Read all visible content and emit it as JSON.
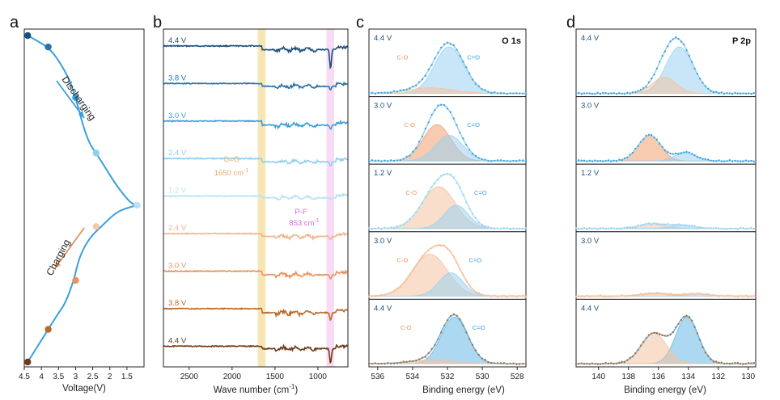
{
  "colors": {
    "blue_dark": "#1d4f7a",
    "blue_mid": "#2a73a8",
    "blue": "#3aa0dc",
    "blue_light": "#8fcff2",
    "orange_light": "#f2b48e",
    "orange": "#e8915a",
    "brown": "#b86a2c",
    "brown_dark": "#6e3a18",
    "band_co": "#f6e2a8",
    "band_pf": "#f7d6f2",
    "co_text": "#e0b070",
    "pf_text": "#d06ad0",
    "fit_blue": "#9ad2f1",
    "fit_orange": "#f4c2a0"
  },
  "chart_data": [
    {
      "id": "a",
      "type": "line",
      "panel_label": "a",
      "xlabel": "Voltage(V)",
      "x_reversed": true,
      "xlim": [
        4.5,
        1.0
      ],
      "x_ticks": [
        "4.5",
        "4",
        "3.5",
        "3",
        "2.5",
        "2",
        "1.5"
      ],
      "x_tick_values": [
        4.5,
        4.0,
        3.5,
        3.0,
        2.5,
        2.0,
        1.5
      ],
      "discharge_curve": [
        [
          4.4,
          0.0
        ],
        [
          3.8,
          0.035
        ],
        [
          3.5,
          0.075
        ],
        [
          3.2,
          0.13
        ],
        [
          3.0,
          0.19
        ],
        [
          2.8,
          0.27
        ],
        [
          2.6,
          0.33
        ],
        [
          2.4,
          0.36
        ],
        [
          2.1,
          0.41
        ],
        [
          1.8,
          0.46
        ],
        [
          1.5,
          0.5
        ],
        [
          1.35,
          0.515
        ],
        [
          1.2,
          0.52
        ]
      ],
      "charge_curve": [
        [
          1.2,
          0.52
        ],
        [
          1.4,
          0.525
        ],
        [
          1.8,
          0.54
        ],
        [
          2.2,
          0.58
        ],
        [
          2.6,
          0.62
        ],
        [
          2.9,
          0.68
        ],
        [
          3.05,
          0.75
        ],
        [
          3.3,
          0.82
        ],
        [
          3.5,
          0.85
        ],
        [
          3.8,
          0.9
        ],
        [
          4.1,
          0.95
        ],
        [
          4.4,
          1.0
        ]
      ],
      "points": [
        {
          "v": 4.4,
          "t": 0.0,
          "color": "#1d4f7a"
        },
        {
          "v": 3.8,
          "t": 0.035,
          "color": "#2a73a8"
        },
        {
          "v": 3.0,
          "t": 0.19,
          "color": "#3aa0dc"
        },
        {
          "v": 2.4,
          "t": 0.36,
          "color": "#8fcff2"
        },
        {
          "v": 1.2,
          "t": 0.52,
          "color": "#b9e2f7"
        },
        {
          "v": 2.4,
          "t": 0.585,
          "color": "#f5c9a8"
        },
        {
          "v": 3.0,
          "t": 0.75,
          "color": "#e8915a"
        },
        {
          "v": 3.8,
          "t": 0.9,
          "color": "#b86a2c"
        },
        {
          "v": 4.4,
          "t": 1.0,
          "color": "#6e3a18"
        }
      ],
      "discharging_label": "Discharging",
      "charging_label": "Charging"
    },
    {
      "id": "b",
      "type": "line",
      "panel_label": "b",
      "xlabel": "Wave number (cm",
      "xlabel_sup": "-1",
      "xlabel_end": ")",
      "x_reversed": true,
      "xlim": [
        2800,
        650
      ],
      "x_ticks": [
        "2500",
        "2000",
        "1500",
        "1000"
      ],
      "x_tick_values": [
        2500,
        2000,
        1500,
        1000
      ],
      "bands": [
        {
          "from": 1700,
          "to": 1610,
          "label": "C=O",
          "value_label": "1650 cm",
          "value_sup": "-1"
        },
        {
          "from": 900,
          "to": 810,
          "label": "P-F",
          "value_label": "853 cm",
          "value_sup": "-1"
        }
      ],
      "series": [
        {
          "label": "4.4 V",
          "color": "#1d4f7a",
          "dip": 0.9,
          "step": 0.45
        },
        {
          "label": "3.8 V",
          "color": "#2a73a8",
          "dip": 0.15,
          "step": 0.35
        },
        {
          "label": "3.0 V",
          "color": "#3aa0dc",
          "dip": 0.2,
          "step": 0.5
        },
        {
          "label": "2.4 V",
          "color": "#8fcff2",
          "dip": 0.2,
          "step": 0.4
        },
        {
          "label": "1.2 V",
          "color": "#b9e2f7",
          "dip": 0.1,
          "step": 0.2
        },
        {
          "label": "2.4 V",
          "color": "#f2b48e",
          "dip": 0.15,
          "step": 0.35
        },
        {
          "label": "3.0 V",
          "color": "#e8915a",
          "dip": 0.2,
          "step": 0.45
        },
        {
          "label": "3.8 V",
          "color": "#b86a2c",
          "dip": 0.35,
          "step": 0.5
        },
        {
          "label": "4.4 V",
          "color": "#6e3a18",
          "dip": 0.7,
          "step": 0.3
        }
      ]
    },
    {
      "id": "c",
      "type": "line",
      "panel_label": "c",
      "element_label": "O 1s",
      "xlabel": "Binding energy (eV)",
      "x_reversed": true,
      "xlim": [
        536.5,
        527.5
      ],
      "x_ticks": [
        "536",
        "534",
        "532",
        "530",
        "528"
      ],
      "x_tick_values": [
        536,
        534,
        532,
        530,
        528
      ],
      "rows": [
        {
          "label": "4.4 V",
          "label_color": "#1d4f7a",
          "data_color": "#3aa0dc",
          "fit_color": "#9ad2f1",
          "peaks": [
            {
              "center": 531.9,
              "amp": 1.0,
              "width": 0.85,
              "color": "#9ad2f1",
              "label": "C=O"
            },
            {
              "center": 533.0,
              "amp": 0.12,
              "width": 1.3,
              "color": "#f4c2a0",
              "label": "C-O"
            }
          ]
        },
        {
          "label": "3.0 V",
          "label_color": "#1d4f7a",
          "data_color": "#3aa0dc",
          "fit_color": "#9ad2f1",
          "peaks": [
            {
              "center": 532.6,
              "amp": 0.78,
              "width": 0.8,
              "color": "#f0a070",
              "label": "C-O"
            },
            {
              "center": 531.9,
              "amp": 0.55,
              "width": 0.8,
              "color": "#9ad2f1",
              "label": "C=O"
            }
          ]
        },
        {
          "label": "1.2 V",
          "label_color": "#1d4f7a",
          "data_color": "#9ad2f1",
          "fit_color": "#b9e2f7",
          "peaks": [
            {
              "center": 532.5,
              "amp": 0.9,
              "width": 0.95,
              "color": "#f4c2a0",
              "label": "C-O"
            },
            {
              "center": 531.5,
              "amp": 0.5,
              "width": 0.7,
              "color": "#9ad2f1",
              "label": "C=O"
            }
          ]
        },
        {
          "label": "3.0 V",
          "label_color": "#1d4f7a",
          "data_color": "#f4c2a0",
          "fit_color": "#f4c2a0",
          "peaks": [
            {
              "center": 533.0,
              "amp": 0.9,
              "width": 1.0,
              "color": "#f4c2a0",
              "label": "C-O"
            },
            {
              "center": 531.8,
              "amp": 0.5,
              "width": 0.7,
              "color": "#9ad2f1",
              "label": "C=O"
            }
          ]
        },
        {
          "label": "4.4 V",
          "label_color": "#1d4f7a",
          "data_color": "#b86a2c",
          "fit_color": "#6ab8e6",
          "peaks": [
            {
              "center": 531.6,
              "amp": 1.0,
              "width": 0.75,
              "color": "#6ab8e6",
              "label": "C=O"
            },
            {
              "center": 532.8,
              "amp": 0.08,
              "width": 1.2,
              "color": "#f4c2a0",
              "label": "C-O"
            }
          ]
        }
      ]
    },
    {
      "id": "d",
      "type": "line",
      "panel_label": "d",
      "element_label": "P 2p",
      "xlabel": "Binding energy (eV)",
      "x_reversed": true,
      "xlim": [
        141.5,
        129.5
      ],
      "x_ticks": [
        "140",
        "138",
        "136",
        "134",
        "132",
        "130"
      ],
      "x_tick_values": [
        140,
        138,
        136,
        134,
        132,
        130
      ],
      "rows": [
        {
          "label": "4.4 V",
          "label_color": "#1d4f7a",
          "data_color": "#3aa0dc",
          "fit_color": "#9ad2f1",
          "peaks": [
            {
              "center": 134.6,
              "amp": 1.0,
              "width": 0.9,
              "color": "#9ad2f1"
            },
            {
              "center": 135.6,
              "amp": 0.35,
              "width": 0.8,
              "color": "#f4c2a0"
            }
          ]
        },
        {
          "label": "3.0 V",
          "label_color": "#1d4f7a",
          "data_color": "#3aa0dc",
          "fit_color": "#9ad2f1",
          "peaks": [
            {
              "center": 136.6,
              "amp": 0.55,
              "width": 0.75,
              "color": "#f0a070"
            },
            {
              "center": 134.2,
              "amp": 0.18,
              "width": 0.7,
              "color": "#9ad2f1"
            }
          ]
        },
        {
          "label": "1.2 V",
          "label_color": "#1d4f7a",
          "data_color": "#9ad2f1",
          "fit_color": "#b9e2f7",
          "peaks": [
            {
              "center": 136.4,
              "amp": 0.1,
              "width": 0.9,
              "color": "#f4c2a0"
            },
            {
              "center": 134.4,
              "amp": 0.07,
              "width": 0.8,
              "color": "#9ad2f1"
            }
          ]
        },
        {
          "label": "3.0 V",
          "label_color": "#1d4f7a",
          "data_color": "#f4c2a0",
          "fit_color": "#f4c2a0",
          "peaks": [
            {
              "center": 136.2,
              "amp": 0.06,
              "width": 0.9,
              "color": "#f4c2a0"
            },
            {
              "center": 133.5,
              "amp": 0.05,
              "width": 0.8,
              "color": "#9ad2f1"
            }
          ]
        },
        {
          "label": "4.4 V",
          "label_color": "#1d4f7a",
          "data_color": "#b86a2c",
          "fit_color": "#6ab8e6",
          "peaks": [
            {
              "center": 134.1,
              "amp": 1.0,
              "width": 0.75,
              "color": "#6ab8e6"
            },
            {
              "center": 136.3,
              "amp": 0.65,
              "width": 0.85,
              "color": "#f4c2a0"
            }
          ]
        }
      ]
    }
  ]
}
